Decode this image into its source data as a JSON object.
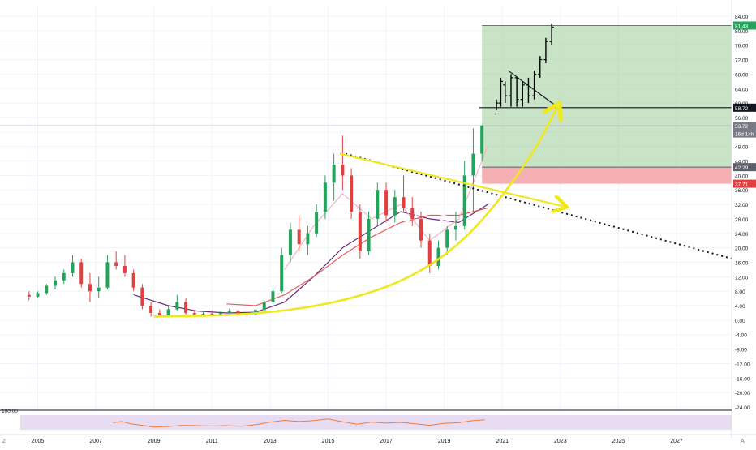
{
  "colors": {
    "up": "#22a55b",
    "down": "#e0413f",
    "grid": "#f0f3fa",
    "axis_text": "#131722",
    "profit_zone": "#a5d0a0",
    "stop_zone": "#f3a2a7",
    "ma_red": "#e85a5a",
    "ma_purple": "#6b2a78",
    "ma_pink": "#f7b2c0",
    "yellow": "#f0e81e",
    "rsi_band": "#e6d8f2",
    "rsi_line": "#f07a3a"
  },
  "price_axis": {
    "min": -24,
    "max": 84,
    "step": 4,
    "ticks": [
      "84.00",
      "80.00",
      "76.00",
      "72.00",
      "68.00",
      "64.00",
      "60.00",
      "56.00",
      "52.00",
      "48.00",
      "44.00",
      "40.00",
      "36.00",
      "32.00",
      "28.00",
      "24.00",
      "20.00",
      "16.00",
      "12.00",
      "8.00",
      "4.00",
      "0.00",
      "-4.00",
      "-8.00",
      "-12.00",
      "-16.00",
      "-20.00",
      "-24.00"
    ],
    "badges": [
      {
        "id": "target",
        "label": "81.43",
        "value": 81.43,
        "color": "#22a55b"
      },
      {
        "id": "level",
        "label": "58.72",
        "value": 58.72,
        "color": "#131722"
      },
      {
        "id": "current",
        "label": "53.72",
        "value": 53.72,
        "color": "#787b86"
      },
      {
        "id": "countdown",
        "label": "16d 14h",
        "value": 51.6,
        "color": "#787b86"
      },
      {
        "id": "entry",
        "label": "42.29",
        "value": 42.29,
        "color": "#5d606b"
      },
      {
        "id": "stop",
        "label": "37.71",
        "value": 37.71,
        "color": "#e0413f"
      }
    ]
  },
  "time_axis": {
    "start": 2003.7,
    "end": 2028.9,
    "ticks": [
      {
        "label": "2005",
        "year": 2005
      },
      {
        "label": "2007",
        "year": 2007
      },
      {
        "label": "2009",
        "year": 2009
      },
      {
        "label": "2011",
        "year": 2011
      },
      {
        "label": "2013",
        "year": 2013
      },
      {
        "label": "2015",
        "year": 2015
      },
      {
        "label": "2017",
        "year": 2017
      },
      {
        "label": "2019",
        "year": 2019
      },
      {
        "label": "2021",
        "year": 2021
      },
      {
        "label": "2023",
        "year": 2023
      },
      {
        "label": "2025",
        "year": 2025
      },
      {
        "label": "2027",
        "year": 2027
      }
    ]
  },
  "rsi_panel": {
    "level_label": "100.00"
  },
  "corner_labels": {
    "left": "Z",
    "right": "A"
  },
  "chart_data": {
    "type": "candlestick",
    "series": [
      {
        "kind": "candles",
        "candles": [
          {
            "x": 2004.7,
            "o": 7,
            "h": 8,
            "l": 5.5,
            "c": 6.5
          },
          {
            "x": 2005.0,
            "o": 6.5,
            "h": 8,
            "l": 6,
            "c": 7.5
          },
          {
            "x": 2005.3,
            "o": 7.5,
            "h": 10,
            "l": 7,
            "c": 9.5
          },
          {
            "x": 2005.6,
            "o": 9.5,
            "h": 12,
            "l": 8.5,
            "c": 11
          },
          {
            "x": 2005.9,
            "o": 11,
            "h": 14,
            "l": 10,
            "c": 13
          },
          {
            "x": 2006.2,
            "o": 13,
            "h": 18,
            "l": 12,
            "c": 16
          },
          {
            "x": 2006.5,
            "o": 16,
            "h": 17,
            "l": 9,
            "c": 10
          },
          {
            "x": 2006.8,
            "o": 10,
            "h": 13,
            "l": 5,
            "c": 8
          },
          {
            "x": 2007.1,
            "o": 8,
            "h": 12,
            "l": 6,
            "c": 9
          },
          {
            "x": 2007.4,
            "o": 9,
            "h": 18,
            "l": 8.5,
            "c": 16
          },
          {
            "x": 2007.7,
            "o": 16,
            "h": 19,
            "l": 14,
            "c": 15
          },
          {
            "x": 2008.0,
            "o": 15,
            "h": 18,
            "l": 12,
            "c": 13
          },
          {
            "x": 2008.3,
            "o": 13,
            "h": 14,
            "l": 8,
            "c": 9
          },
          {
            "x": 2008.6,
            "o": 9,
            "h": 10,
            "l": 3,
            "c": 4
          },
          {
            "x": 2008.9,
            "o": 4,
            "h": 5,
            "l": 1,
            "c": 2
          },
          {
            "x": 2009.2,
            "o": 2,
            "h": 3,
            "l": 0.8,
            "c": 1.2
          },
          {
            "x": 2009.5,
            "o": 1.2,
            "h": 4,
            "l": 1,
            "c": 3
          },
          {
            "x": 2009.8,
            "o": 3,
            "h": 7,
            "l": 2.5,
            "c": 5
          },
          {
            "x": 2010.1,
            "o": 5,
            "h": 6,
            "l": 1.5,
            "c": 2
          },
          {
            "x": 2010.4,
            "o": 2,
            "h": 2.8,
            "l": 1.2,
            "c": 1.6
          },
          {
            "x": 2010.7,
            "o": 1.6,
            "h": 2.4,
            "l": 1.2,
            "c": 1.8
          },
          {
            "x": 2011.0,
            "o": 1.8,
            "h": 2.6,
            "l": 1.3,
            "c": 1.5
          },
          {
            "x": 2011.3,
            "o": 1.5,
            "h": 2.5,
            "l": 1.2,
            "c": 2
          },
          {
            "x": 2011.6,
            "o": 2,
            "h": 3.2,
            "l": 1.5,
            "c": 2.6
          },
          {
            "x": 2011.9,
            "o": 2.6,
            "h": 3,
            "l": 1.4,
            "c": 1.7
          },
          {
            "x": 2012.2,
            "o": 1.7,
            "h": 2.2,
            "l": 1.2,
            "c": 1.6
          },
          {
            "x": 2012.5,
            "o": 1.6,
            "h": 3,
            "l": 1.3,
            "c": 2.8
          },
          {
            "x": 2012.8,
            "o": 2.8,
            "h": 5.5,
            "l": 2.5,
            "c": 5
          },
          {
            "x": 2013.1,
            "o": 5,
            "h": 9,
            "l": 4.5,
            "c": 8
          },
          {
            "x": 2013.4,
            "o": 8,
            "h": 20,
            "l": 7.5,
            "c": 18
          },
          {
            "x": 2013.7,
            "o": 18,
            "h": 27,
            "l": 16,
            "c": 25
          },
          {
            "x": 2014.0,
            "o": 25,
            "h": 29,
            "l": 19,
            "c": 21
          },
          {
            "x": 2014.3,
            "o": 21,
            "h": 26,
            "l": 18,
            "c": 24
          },
          {
            "x": 2014.6,
            "o": 24,
            "h": 32,
            "l": 23,
            "c": 30
          },
          {
            "x": 2014.9,
            "o": 30,
            "h": 40,
            "l": 28,
            "c": 38
          },
          {
            "x": 2015.2,
            "o": 38,
            "h": 46,
            "l": 33,
            "c": 43
          },
          {
            "x": 2015.5,
            "o": 43,
            "h": 51,
            "l": 36,
            "c": 40
          },
          {
            "x": 2015.8,
            "o": 40,
            "h": 42,
            "l": 28,
            "c": 30
          },
          {
            "x": 2016.1,
            "o": 30,
            "h": 32,
            "l": 17,
            "c": 19
          },
          {
            "x": 2016.4,
            "o": 19,
            "h": 30,
            "l": 18,
            "c": 28
          },
          {
            "x": 2016.7,
            "o": 28,
            "h": 38,
            "l": 26,
            "c": 36
          },
          {
            "x": 2017.0,
            "o": 36,
            "h": 38,
            "l": 27,
            "c": 29
          },
          {
            "x": 2017.3,
            "o": 29,
            "h": 36,
            "l": 27,
            "c": 34
          },
          {
            "x": 2017.6,
            "o": 34,
            "h": 40,
            "l": 30,
            "c": 31
          },
          {
            "x": 2017.9,
            "o": 31,
            "h": 34,
            "l": 26,
            "c": 28
          },
          {
            "x": 2018.2,
            "o": 28,
            "h": 30,
            "l": 20,
            "c": 22
          },
          {
            "x": 2018.5,
            "o": 22,
            "h": 24,
            "l": 13,
            "c": 15
          },
          {
            "x": 2018.8,
            "o": 15,
            "h": 22,
            "l": 14,
            "c": 20
          },
          {
            "x": 2019.1,
            "o": 20,
            "h": 26,
            "l": 18,
            "c": 25
          },
          {
            "x": 2019.4,
            "o": 25,
            "h": 30,
            "l": 22,
            "c": 26
          },
          {
            "x": 2019.7,
            "o": 26,
            "h": 44,
            "l": 25,
            "c": 40
          },
          {
            "x": 2020.0,
            "o": 40,
            "h": 53,
            "l": 30,
            "c": 46
          },
          {
            "x": 2020.3,
            "o": 46,
            "h": 54,
            "l": 44,
            "c": 53.7
          }
        ]
      },
      {
        "kind": "projected-bars",
        "bars": [
          {
            "x": 2020.8,
            "o": 57,
            "h": 61,
            "l": 58,
            "c": 60
          },
          {
            "x": 2020.95,
            "o": 60,
            "h": 67,
            "l": 59,
            "c": 66
          },
          {
            "x": 2021.1,
            "o": 65,
            "h": 66,
            "l": 60,
            "c": 62
          },
          {
            "x": 2021.3,
            "o": 62,
            "h": 68,
            "l": 59,
            "c": 67
          },
          {
            "x": 2021.5,
            "o": 67,
            "h": 67,
            "l": 59,
            "c": 61
          },
          {
            "x": 2021.7,
            "o": 61,
            "h": 66,
            "l": 59,
            "c": 65
          },
          {
            "x": 2021.9,
            "o": 65,
            "h": 67,
            "l": 60,
            "c": 62
          },
          {
            "x": 2022.1,
            "o": 62,
            "h": 69,
            "l": 61,
            "c": 68
          },
          {
            "x": 2022.3,
            "o": 68,
            "h": 73,
            "l": 67,
            "c": 72
          },
          {
            "x": 2022.5,
            "o": 72,
            "h": 78,
            "l": 71,
            "c": 77
          },
          {
            "x": 2022.7,
            "o": 77,
            "h": 82,
            "l": 76,
            "c": 81
          }
        ]
      }
    ],
    "moving_averages": [
      {
        "color_key": "ma_purple",
        "points": [
          [
            2008.3,
            7
          ],
          [
            2009.5,
            4
          ],
          [
            2010.5,
            2.5
          ],
          [
            2011.5,
            2
          ],
          [
            2012.5,
            2.2
          ],
          [
            2013.5,
            5
          ],
          [
            2014.5,
            12
          ],
          [
            2015.5,
            20
          ],
          [
            2016.5,
            25
          ],
          [
            2017.5,
            30
          ],
          [
            2018.5,
            28
          ],
          [
            2019.5,
            27
          ],
          [
            2020.5,
            32
          ]
        ]
      },
      {
        "color_key": "ma_red",
        "points": [
          [
            2011.5,
            4.5
          ],
          [
            2012.5,
            4
          ],
          [
            2013.5,
            7
          ],
          [
            2014.5,
            12
          ],
          [
            2015.5,
            18
          ],
          [
            2016.5,
            23
          ],
          [
            2017.5,
            27
          ],
          [
            2018.5,
            29
          ],
          [
            2019.5,
            29
          ],
          [
            2020.5,
            31
          ]
        ]
      },
      {
        "color_key": "ma_pink",
        "points": [
          [
            2013.5,
            14
          ],
          [
            2014.5,
            26
          ],
          [
            2015.5,
            35
          ],
          [
            2016.5,
            28
          ],
          [
            2017.5,
            32
          ],
          [
            2018.5,
            22
          ],
          [
            2019.5,
            28
          ],
          [
            2020.5,
            48
          ]
        ]
      }
    ],
    "rsi": {
      "points": [
        [
          2007.6,
          48
        ],
        [
          2007.9,
          56
        ],
        [
          2008.2,
          40
        ],
        [
          2008.6,
          30
        ],
        [
          2009.0,
          18
        ],
        [
          2009.5,
          22
        ],
        [
          2010.0,
          30
        ],
        [
          2010.5,
          28
        ],
        [
          2011.0,
          25
        ],
        [
          2011.5,
          28
        ],
        [
          2012.0,
          24
        ],
        [
          2012.5,
          34
        ],
        [
          2013.0,
          52
        ],
        [
          2013.5,
          64
        ],
        [
          2014.0,
          56
        ],
        [
          2014.5,
          62
        ],
        [
          2015.0,
          74
        ],
        [
          2015.5,
          54
        ],
        [
          2016.0,
          38
        ],
        [
          2016.5,
          52
        ],
        [
          2017.0,
          45
        ],
        [
          2017.5,
          50
        ],
        [
          2018.0,
          40
        ],
        [
          2018.5,
          30
        ],
        [
          2019.0,
          44
        ],
        [
          2019.5,
          48
        ],
        [
          2020.0,
          62
        ],
        [
          2020.4,
          68
        ]
      ]
    },
    "position_zones": {
      "target": 81.43,
      "entry": 53.72,
      "entry_lower": 42.29,
      "stop": 37.71,
      "start_x": 2020.3,
      "end_x": 2028.9
    },
    "horizontal_levels": [
      58.72,
      53.72
    ],
    "trend_lines": {
      "descending_dotted": [
        [
          2015.6,
          46
        ],
        [
          2028.9,
          17
        ]
      ],
      "yellow_wedge_top": [
        [
          2015.4,
          46
        ],
        [
          2023.1,
          31.5
        ]
      ],
      "yellow_curve": [
        [
          2009.0,
          1
        ],
        [
          2012.5,
          1.5
        ],
        [
          2015.5,
          5
        ],
        [
          2018.0,
          12
        ],
        [
          2020.0,
          24
        ],
        [
          2022.0,
          45
        ],
        [
          2022.9,
          59
        ]
      ],
      "white_wedge": [
        [
          2016.0,
          18
        ],
        [
          2018.3,
          30.5
        ],
        [
          2019.2,
          28.5
        ],
        [
          2017.0,
          22
        ]
      ],
      "flag_line": [
        [
          2021.2,
          69
        ],
        [
          2022.8,
          59.5
        ]
      ]
    },
    "ylim": [
      -24,
      84
    ]
  }
}
